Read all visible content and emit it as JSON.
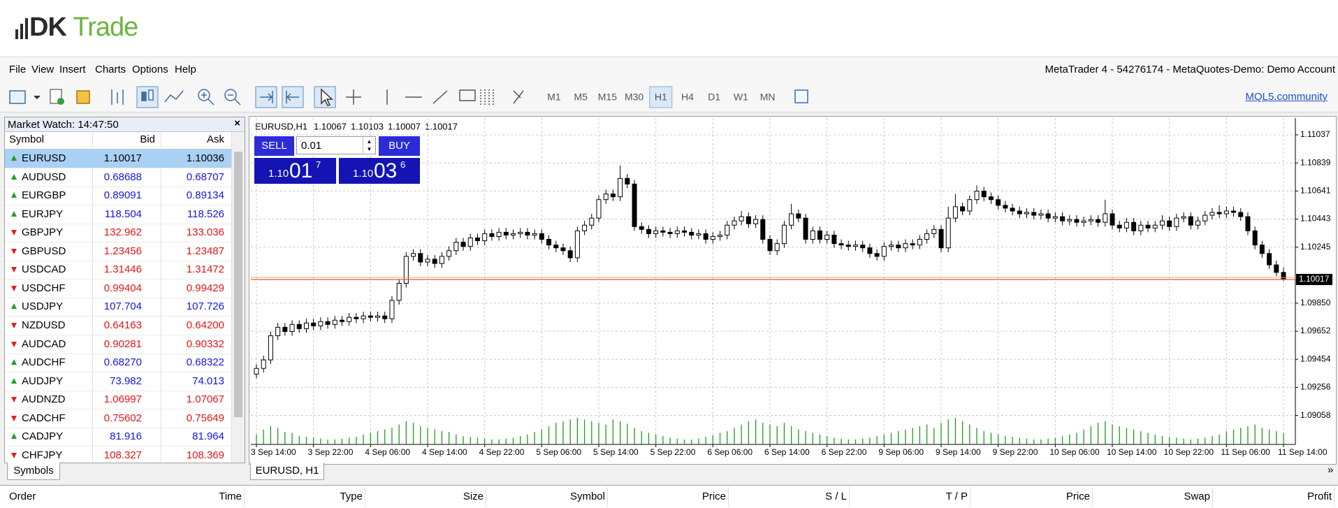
{
  "logo": {
    "mark": "DK",
    "word": "Trade"
  },
  "menu": [
    "File",
    "View",
    "Insert",
    "Charts",
    "Options",
    "Help"
  ],
  "account": "MetaTrader 4 - 54276174 - MetaQuotes-Demo: Demo Account",
  "timeframes": [
    "M1",
    "M5",
    "M15",
    "M30",
    "H1",
    "H4",
    "D1",
    "W1",
    "MN"
  ],
  "active_timeframe": 4,
  "community_link": "MQL5.community",
  "market_watch": {
    "title": "Market Watch: 14:47:50",
    "columns": [
      "Symbol",
      "Bid",
      "Ask"
    ],
    "selected": 0,
    "tab": "Symbols",
    "rows": [
      {
        "symbol": "EURUSD",
        "bid": "1.10017",
        "ask": "1.10036",
        "trend": "up"
      },
      {
        "symbol": "AUDUSD",
        "bid": "0.68688",
        "ask": "0.68707",
        "trend": "up"
      },
      {
        "symbol": "EURGBP",
        "bid": "0.89091",
        "ask": "0.89134",
        "trend": "up"
      },
      {
        "symbol": "EURJPY",
        "bid": "118.504",
        "ask": "118.526",
        "trend": "up"
      },
      {
        "symbol": "GBPJPY",
        "bid": "132.962",
        "ask": "133.036",
        "trend": "down"
      },
      {
        "symbol": "GBPUSD",
        "bid": "1.23456",
        "ask": "1.23487",
        "trend": "down"
      },
      {
        "symbol": "USDCAD",
        "bid": "1.31446",
        "ask": "1.31472",
        "trend": "down"
      },
      {
        "symbol": "USDCHF",
        "bid": "0.99404",
        "ask": "0.99429",
        "trend": "down"
      },
      {
        "symbol": "USDJPY",
        "bid": "107.704",
        "ask": "107.726",
        "trend": "up"
      },
      {
        "symbol": "NZDUSD",
        "bid": "0.64163",
        "ask": "0.64200",
        "trend": "down"
      },
      {
        "symbol": "AUDCAD",
        "bid": "0.90281",
        "ask": "0.90332",
        "trend": "down"
      },
      {
        "symbol": "AUDCHF",
        "bid": "0.68270",
        "ask": "0.68322",
        "trend": "up"
      },
      {
        "symbol": "AUDJPY",
        "bid": "73.982",
        "ask": "74.013",
        "trend": "up"
      },
      {
        "symbol": "AUDNZD",
        "bid": "1.06997",
        "ask": "1.07067",
        "trend": "down"
      },
      {
        "symbol": "CADCHF",
        "bid": "0.75602",
        "ask": "0.75649",
        "trend": "down"
      },
      {
        "symbol": "CADJPY",
        "bid": "81.916",
        "ask": "81.964",
        "trend": "up"
      },
      {
        "symbol": "CHFJPY",
        "bid": "108.327",
        "ask": "108.369",
        "trend": "down"
      }
    ]
  },
  "trade_panel": {
    "sell": "SELL",
    "buy": "BUY",
    "lot": "0.01",
    "bid_parts": [
      "1.10",
      "01",
      "7"
    ],
    "ask_parts": [
      "1.10",
      "03",
      "6"
    ]
  },
  "chart_tab": "EURUSD, H1",
  "terminal_columns": [
    "Order",
    "Time",
    "Type",
    "Size",
    "Symbol",
    "Price",
    "S / L",
    "T / P",
    "Price",
    "Swap",
    "Profit"
  ],
  "chart_data": {
    "type": "candlestick",
    "title": "EURUSD,H1",
    "up_color": "#ffffff",
    "down_color": "#000000",
    "volume_color": "#1f9a1f",
    "price_line_color": "#e8572a",
    "grid": true,
    "ylim": [
      1.08854,
      1.11155
    ],
    "yticks": [
      1.11037,
      1.10839,
      1.10641,
      1.10443,
      1.10245,
      {
        "value": 1.0985,
        "label": "1.09850"
      },
      1.09652,
      1.09454,
      1.09256,
      1.09058
    ],
    "categories": [
      "3 Sep 14:00",
      null,
      null,
      null,
      null,
      null,
      null,
      null,
      "3 Sep 22:00",
      null,
      null,
      null,
      null,
      null,
      null,
      null,
      "4 Sep 06:00",
      null,
      null,
      null,
      null,
      null,
      null,
      null,
      "4 Sep 14:00",
      null,
      null,
      null,
      null,
      null,
      null,
      null,
      "4 Sep 22:00",
      null,
      null,
      null,
      null,
      null,
      null,
      null,
      "5 Sep 06:00",
      null,
      null,
      null,
      null,
      null,
      null,
      null,
      "5 Sep 14:00",
      null,
      null,
      null,
      null,
      null,
      null,
      null,
      "5 Sep 22:00",
      null,
      null,
      null,
      null,
      null,
      null,
      null,
      "6 Sep 06:00",
      null,
      null,
      null,
      null,
      null,
      null,
      null,
      "6 Sep 14:00",
      null,
      null,
      null,
      null,
      null,
      null,
      null,
      "6 Sep 22:00",
      null,
      null,
      null,
      null,
      null,
      null,
      null,
      "9 Sep 06:00",
      null,
      null,
      null,
      null,
      null,
      null,
      null,
      "9 Sep 14:00",
      null,
      null,
      null,
      null,
      null,
      null,
      null,
      "9 Sep 22:00",
      null,
      null,
      null,
      null,
      null,
      null,
      null,
      "10 Sep 06:00",
      null,
      null,
      null,
      null,
      null,
      null,
      null,
      "10 Sep 14:00",
      null,
      null,
      null,
      null,
      null,
      null,
      null,
      "10 Sep 22:00",
      null,
      null,
      null,
      null,
      null,
      null,
      null,
      "11 Sep 06:00",
      null,
      null,
      null,
      null,
      null,
      null,
      null,
      "11 Sep 14:00"
    ],
    "open": [
      1.0935,
      1.0939,
      1.0945,
      1.0962,
      1.0968,
      1.0965,
      1.097,
      1.0967,
      1.0971,
      1.0969,
      1.0972,
      1.097,
      1.0973,
      1.0972,
      1.0975,
      1.0974,
      1.0976,
      1.0975,
      1.0976,
      1.0974,
      1.0987,
      1.0999,
      1.1018,
      1.102,
      1.1014,
      1.1016,
      1.1013,
      1.1018,
      1.1022,
      1.1028,
      1.1025,
      1.1031,
      1.1029,
      1.1034,
      1.1032,
      1.1035,
      1.1033,
      1.1034,
      1.1035,
      1.1033,
      1.1034,
      1.103,
      1.1026,
      1.1024,
      1.1022,
      1.1017,
      1.1036,
      1.104,
      1.1045,
      1.1058,
      1.1062,
      1.106,
      1.1073,
      1.1069,
      1.1039,
      1.1037,
      1.1034,
      1.1036,
      1.1035,
      1.1034,
      1.1036,
      1.1035,
      1.1033,
      1.1034,
      1.103,
      1.1032,
      1.1033,
      1.104,
      1.1043,
      1.1046,
      1.1041,
      1.1044,
      1.103,
      1.1022,
      1.1027,
      1.104,
      1.1048,
      1.1045,
      1.103,
      1.1036,
      1.103,
      1.1033,
      1.1027,
      1.1026,
      1.1025,
      1.1026,
      1.1024,
      1.102,
      1.1018,
      1.1025,
      1.1026,
      1.1024,
      1.1027,
      1.1026,
      1.103,
      1.1034,
      1.1037,
      1.1024,
      1.1045,
      1.1053,
      1.105,
      1.1058,
      1.1064,
      1.106,
      1.1058,
      1.1054,
      1.1052,
      1.105,
      1.1048,
      1.1049,
      1.1047,
      1.1048,
      1.1045,
      1.1046,
      1.1043,
      1.1044,
      1.1042,
      1.1043,
      1.1044,
      1.1042,
      1.1048,
      1.104,
      1.1038,
      1.1042,
      1.1036,
      1.104,
      1.1038,
      1.104,
      1.1043,
      1.1039,
      1.1045,
      1.1046,
      1.104,
      1.1043,
      1.1047,
      1.1049,
      1.1048,
      1.105,
      1.1049,
      1.1046,
      1.1036,
      1.1026,
      1.102,
      1.1012,
      1.10067
    ],
    "high": [
      1.0942,
      1.0948,
      1.0965,
      1.0971,
      1.0971,
      1.0973,
      1.0973,
      1.0974,
      1.0974,
      1.0975,
      1.0975,
      1.0976,
      1.0976,
      1.0978,
      1.0978,
      1.0979,
      1.0979,
      1.0979,
      1.0979,
      1.099,
      1.1002,
      1.1021,
      1.1023,
      1.1023,
      1.1019,
      1.1019,
      1.1021,
      1.1025,
      1.1031,
      1.1031,
      1.1034,
      1.1034,
      1.1037,
      1.1037,
      1.1038,
      1.1038,
      1.1037,
      1.1038,
      1.1038,
      1.1037,
      1.1037,
      1.1033,
      1.1029,
      1.1027,
      1.1025,
      1.1039,
      1.1043,
      1.1048,
      1.1061,
      1.1065,
      1.1065,
      1.1082,
      1.1076,
      1.1072,
      1.1042,
      1.104,
      1.1039,
      1.1039,
      1.1038,
      1.1039,
      1.1039,
      1.1038,
      1.1037,
      1.1037,
      1.1035,
      1.1036,
      1.1043,
      1.1046,
      1.105,
      1.1049,
      1.1047,
      1.1047,
      1.1033,
      1.103,
      1.1043,
      1.1055,
      1.1051,
      1.1048,
      1.1039,
      1.1039,
      1.1036,
      1.1036,
      1.103,
      1.1029,
      1.1029,
      1.1029,
      1.1027,
      1.1023,
      1.1028,
      1.1029,
      1.1029,
      1.103,
      1.103,
      1.1033,
      1.1037,
      1.104,
      1.104,
      1.1053,
      1.1062,
      1.1056,
      1.1061,
      1.1068,
      1.1067,
      1.1063,
      1.1061,
      1.1057,
      1.1055,
      1.1053,
      1.1052,
      1.1052,
      1.1051,
      1.1051,
      1.1049,
      1.1049,
      1.1047,
      1.1047,
      1.1046,
      1.1047,
      1.1047,
      1.1058,
      1.1051,
      1.1043,
      1.1045,
      1.1045,
      1.1043,
      1.1043,
      1.1043,
      1.1047,
      1.1046,
      1.1048,
      1.1049,
      1.1049,
      1.1046,
      1.105,
      1.1052,
      1.1054,
      1.1053,
      1.1053,
      1.1052,
      1.1049,
      1.1039,
      1.1029,
      1.1023,
      1.1015,
      1.10103
    ],
    "low": [
      1.0932,
      1.0936,
      1.0942,
      1.0959,
      1.0962,
      1.0962,
      1.0964,
      1.0964,
      1.0966,
      1.0966,
      1.0967,
      1.0967,
      1.0969,
      1.0969,
      1.0971,
      1.0971,
      1.0972,
      1.0972,
      1.0971,
      1.0971,
      1.0984,
      1.0996,
      1.1015,
      1.1011,
      1.1011,
      1.101,
      1.101,
      1.1015,
      1.1019,
      1.1022,
      1.1022,
      1.1026,
      1.1026,
      1.1029,
      1.1029,
      1.103,
      1.103,
      1.1031,
      1.103,
      1.103,
      1.1027,
      1.1023,
      1.1021,
      1.1019,
      1.1014,
      1.1014,
      1.1033,
      1.1037,
      1.1042,
      1.1055,
      1.1057,
      1.1057,
      1.1066,
      1.1036,
      1.1034,
      1.1031,
      1.1031,
      1.1032,
      1.1031,
      1.1031,
      1.1032,
      1.103,
      1.103,
      1.1027,
      1.1027,
      1.1029,
      1.103,
      1.1037,
      1.104,
      1.1038,
      1.1038,
      1.1027,
      1.1019,
      1.1019,
      1.1024,
      1.1037,
      1.1042,
      1.1027,
      1.1027,
      1.1027,
      1.1027,
      1.1024,
      1.1023,
      1.1022,
      1.1022,
      1.1021,
      1.1017,
      1.1015,
      1.1015,
      1.1022,
      1.1021,
      1.1021,
      1.1023,
      1.1023,
      1.1027,
      1.1031,
      1.1021,
      1.1021,
      1.1042,
      1.1047,
      1.1047,
      1.1055,
      1.1057,
      1.1055,
      1.1051,
      1.1049,
      1.1047,
      1.1045,
      1.1045,
      1.1044,
      1.1044,
      1.1042,
      1.1042,
      1.104,
      1.104,
      1.1039,
      1.1039,
      1.104,
      1.1039,
      1.1039,
      1.1037,
      1.1035,
      1.1035,
      1.1033,
      1.1033,
      1.1035,
      1.1035,
      1.1037,
      1.1036,
      1.1036,
      1.1042,
      1.1037,
      1.1037,
      1.104,
      1.1044,
      1.1045,
      1.1045,
      1.1046,
      1.1043,
      1.1033,
      1.1023,
      1.1017,
      1.1009,
      1.1004,
      1.10007
    ],
    "close": [
      1.0939,
      1.0945,
      1.0962,
      1.0968,
      1.0965,
      1.097,
      1.0967,
      1.0971,
      1.0969,
      1.0972,
      1.097,
      1.0973,
      1.0972,
      1.0975,
      1.0974,
      1.0976,
      1.0975,
      1.0976,
      1.0974,
      1.0987,
      1.0999,
      1.1018,
      1.102,
      1.1014,
      1.1016,
      1.1013,
      1.1018,
      1.1022,
      1.1028,
      1.1025,
      1.1031,
      1.1029,
      1.1034,
      1.1032,
      1.1035,
      1.1033,
      1.1034,
      1.1035,
      1.1033,
      1.1034,
      1.103,
      1.1026,
      1.1024,
      1.1022,
      1.1017,
      1.1036,
      1.104,
      1.1045,
      1.1058,
      1.1062,
      1.106,
      1.1073,
      1.1069,
      1.1039,
      1.1037,
      1.1034,
      1.1036,
      1.1035,
      1.1034,
      1.1036,
      1.1035,
      1.1033,
      1.1034,
      1.103,
      1.1032,
      1.1033,
      1.104,
      1.1043,
      1.1046,
      1.1041,
      1.1044,
      1.103,
      1.1022,
      1.1027,
      1.104,
      1.1048,
      1.1045,
      1.103,
      1.1036,
      1.103,
      1.1033,
      1.1027,
      1.1026,
      1.1025,
      1.1026,
      1.1024,
      1.102,
      1.1018,
      1.1025,
      1.1026,
      1.1024,
      1.1027,
      1.1026,
      1.103,
      1.1034,
      1.1037,
      1.1024,
      1.1045,
      1.1053,
      1.105,
      1.1058,
      1.1064,
      1.106,
      1.1058,
      1.1054,
      1.1052,
      1.105,
      1.1048,
      1.1049,
      1.1047,
      1.1048,
      1.1045,
      1.1046,
      1.1043,
      1.1044,
      1.1042,
      1.1043,
      1.1044,
      1.1042,
      1.1048,
      1.104,
      1.1038,
      1.1042,
      1.1036,
      1.104,
      1.1038,
      1.104,
      1.1043,
      1.1039,
      1.1045,
      1.1046,
      1.104,
      1.1043,
      1.1047,
      1.1049,
      1.1048,
      1.105,
      1.1049,
      1.1046,
      1.1036,
      1.1026,
      1.102,
      1.1012,
      1.10067,
      1.10017
    ],
    "volume": [
      12,
      18,
      22,
      20,
      15,
      14,
      10,
      9,
      8,
      7,
      6,
      6,
      7,
      8,
      9,
      12,
      14,
      16,
      18,
      20,
      24,
      28,
      26,
      22,
      20,
      18,
      16,
      15,
      12,
      10,
      9,
      8,
      7,
      6,
      6,
      7,
      8,
      10,
      12,
      15,
      18,
      22,
      26,
      28,
      30,
      32,
      30,
      28,
      26,
      24,
      30,
      28,
      25,
      20,
      16,
      14,
      12,
      10,
      8,
      7,
      6,
      6,
      7,
      9,
      11,
      14,
      16,
      20,
      24,
      28,
      30,
      26,
      24,
      22,
      26,
      22,
      18,
      16,
      14,
      12,
      10,
      8,
      7,
      6,
      6,
      7,
      8,
      10,
      12,
      14,
      16,
      18,
      20,
      22,
      24,
      20,
      26,
      30,
      32,
      28,
      24,
      20,
      16,
      14,
      12,
      10,
      9,
      8,
      7,
      6,
      6,
      7,
      8,
      10,
      12,
      14,
      18,
      22,
      26,
      28,
      24,
      22,
      20,
      18,
      16,
      14,
      12,
      10,
      9,
      8,
      7,
      6,
      7,
      8,
      10,
      12,
      16,
      18,
      20,
      22,
      24,
      20,
      18,
      16,
      14
    ]
  }
}
